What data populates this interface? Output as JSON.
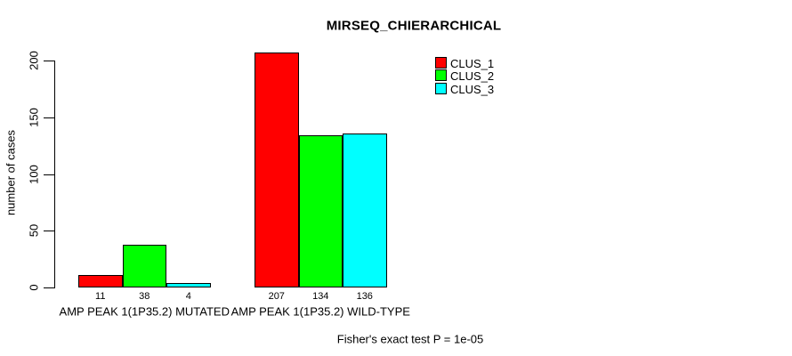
{
  "chart_data": {
    "type": "bar",
    "title": "MIRSEQ_CHIERARCHICAL",
    "ylabel": "number of cases",
    "xlabel": "",
    "categories": [
      "AMP PEAK 1(1P35.2) MUTATED",
      "AMP PEAK 1(1P35.2) WILD-TYPE"
    ],
    "series": [
      {
        "name": "CLUS_1",
        "color": "#FF0000",
        "values": [
          11,
          207
        ]
      },
      {
        "name": "CLUS_2",
        "color": "#00FF00",
        "values": [
          38,
          134
        ]
      },
      {
        "name": "CLUS_3",
        "color": "#00FFFF",
        "values": [
          4,
          136
        ]
      }
    ],
    "yticks": [
      0,
      50,
      100,
      150,
      200
    ],
    "ylim": [
      0,
      200
    ],
    "legend_position": "top-right",
    "grid": false,
    "annotation": "Fisher's exact test P = 1e-05"
  }
}
